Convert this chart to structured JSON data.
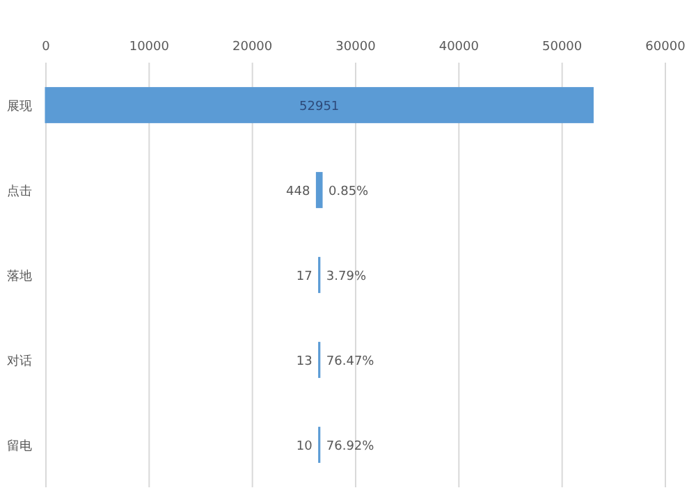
{
  "chart_data": {
    "type": "bar",
    "orientation": "horizontal",
    "categories": [
      "展现",
      "点击",
      "落地",
      "对话",
      "留电"
    ],
    "values": [
      52951,
      448,
      17,
      13,
      10
    ],
    "base": [
      0,
      26251.5,
      26467,
      26469,
      26470.5
    ],
    "color": "#5b9bd5",
    "xlim": [
      0,
      60000
    ],
    "xticks": [
      0,
      10000,
      20000,
      30000,
      40000,
      50000,
      60000
    ],
    "grid": "x",
    "data_labels": true,
    "annotations": [
      {
        "text": "0.85%",
        "x": 26699.5,
        "y": "点击"
      },
      {
        "text": "3.79%",
        "x": 26484,
        "y": "落地"
      },
      {
        "text": "76.47%",
        "x": 26482,
        "y": "对话"
      },
      {
        "text": "76.92%",
        "x": 26480.5,
        "y": "留电"
      }
    ]
  }
}
